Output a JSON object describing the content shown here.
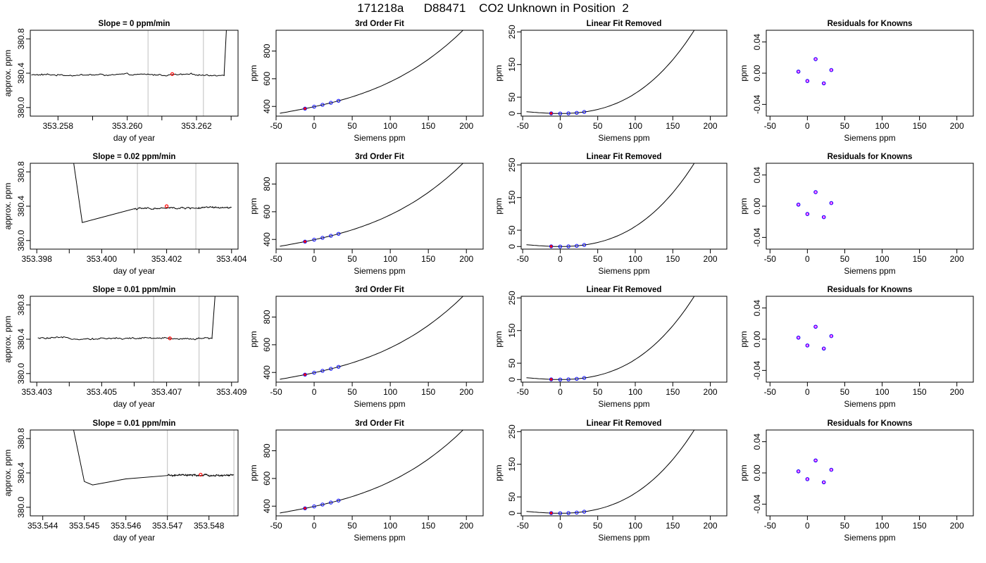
{
  "page": {
    "title": "171218a      D88471    CO2 Unknown in Position  2"
  },
  "chart_data": [
    {
      "type": "line",
      "panel": "timeseries",
      "row": 0,
      "title": "Slope =  0  ppm/min",
      "xlabel": "day of year",
      "ylabel": "approx. ppm",
      "xlim": [
        353.2572,
        353.2632
      ],
      "ylim": [
        379.9,
        380.9
      ],
      "xticks": [
        353.258,
        353.26,
        353.262
      ],
      "xtick_labels": [
        "353.258",
        "353.260",
        "353.262"
      ],
      "minor_xticks": [
        353.259,
        353.261,
        353.263
      ],
      "yticks": [
        380.0,
        380.4,
        380.8
      ],
      "ytick_labels": [
        "380.0",
        "380.4",
        "380.8"
      ],
      "vlines": [
        353.2606,
        353.2622
      ],
      "baseline": 380.38,
      "x_start": 353.2572,
      "x_end": 353.263,
      "features": [
        [
          353.2628,
          380.4,
          353.2629,
          381.2
        ]
      ],
      "marker": [
        353.2613,
        380.39
      ],
      "colors": {
        "line": "#000000",
        "vline": "#bebebe",
        "marker": "#ff0000"
      }
    },
    {
      "type": "line",
      "panel": "fit",
      "row": 0,
      "title": "3rd Order Fit",
      "xlabel": "Siemens ppm",
      "ylabel": "ppm",
      "xlim": [
        -50,
        222
      ],
      "ylim": [
        330,
        950
      ],
      "xticks": [
        -50,
        0,
        50,
        100,
        150,
        200
      ],
      "xtick_labels": [
        "-50",
        "0",
        "50",
        "100",
        "150",
        "200"
      ],
      "yticks": [
        400,
        600,
        800
      ],
      "ytick_labels": [
        "400",
        "600",
        "800"
      ],
      "curve_x": [
        -45,
        216
      ],
      "poly": [
        398,
        1.18,
        0.0038,
        2.35e-05
      ],
      "points_x": [
        -12,
        0,
        11,
        22,
        32
      ],
      "red_point_x": -12,
      "colors": {
        "points": "#0000ff",
        "marker": "#ff0000",
        "line": "#000000"
      }
    },
    {
      "type": "line",
      "panel": "linfit",
      "row": 0,
      "title": "Linear Fit Removed",
      "xlabel": "Siemens ppm",
      "ylabel": "ppm",
      "xlim": [
        -52,
        222
      ],
      "ylim": [
        -8,
        255
      ],
      "xticks": [
        -50,
        0,
        50,
        100,
        150,
        200
      ],
      "xtick_labels": [
        "-50",
        "0",
        "50",
        "100",
        "150",
        "200"
      ],
      "yticks": [
        0,
        50,
        150,
        250
      ],
      "ytick_labels": [
        "0",
        "50",
        "150",
        "250"
      ],
      "curve_x": [
        -45,
        216
      ],
      "poly": [
        0,
        0,
        0.0038,
        2.35e-05
      ],
      "points_x": [
        -12,
        0,
        11,
        22,
        32
      ],
      "red_point_x": -12,
      "colors": {
        "points": "#0000ff",
        "marker": "#ff0000",
        "line": "#000000"
      }
    },
    {
      "type": "scatter",
      "panel": "residuals",
      "row": 0,
      "title": "Residuals for Knowns",
      "xlabel": "Siemens ppm",
      "ylabel": "ppm",
      "xlim": [
        -55,
        222
      ],
      "ylim": [
        -0.055,
        0.055
      ],
      "xticks": [
        -50,
        0,
        50,
        100,
        150,
        200
      ],
      "xtick_labels": [
        "-50",
        "0",
        "50",
        "100",
        "150",
        "200"
      ],
      "yticks": [
        -0.04,
        0.0,
        0.04
      ],
      "ytick_labels": [
        "-0.04",
        "0.00",
        "0.04"
      ],
      "x": [
        -12,
        0,
        11,
        22,
        32
      ],
      "y": [
        0.002,
        -0.01,
        0.018,
        -0.013,
        0.004
      ],
      "colors": {
        "outer": "#0000ff",
        "inner": "#ff00ff"
      }
    },
    {
      "type": "line",
      "panel": "timeseries",
      "row": 1,
      "title": "Slope =  0.02  ppm/min",
      "xlabel": "day of year",
      "ylabel": "approx. ppm",
      "xlim": [
        353.3978,
        353.4042
      ],
      "ylim": [
        379.9,
        380.9
      ],
      "xticks": [
        353.398,
        353.4,
        353.402,
        353.404
      ],
      "xtick_labels": [
        "353.398",
        "353.400",
        "353.402",
        "353.404"
      ],
      "minor_xticks": [
        353.399,
        353.401,
        353.403
      ],
      "yticks": [
        380.0,
        380.4,
        380.8
      ],
      "ytick_labels": [
        "380.0",
        "380.4",
        "380.8"
      ],
      "vlines": [
        353.4011,
        353.4029
      ],
      "baseline": 380.38,
      "x_start": 353.3991,
      "x_end": 353.404,
      "features": [
        [
          353.3991,
          381.0,
          353.3994,
          380.21,
          353.3999,
          380.26,
          353.401,
          380.37
        ]
      ],
      "marker": [
        353.402,
        380.4
      ],
      "colors": {
        "line": "#000000",
        "vline": "#bebebe",
        "marker": "#ff0000"
      }
    },
    {
      "type": "line",
      "panel": "fit",
      "row": 1,
      "title": "3rd Order Fit",
      "xlabel": "Siemens ppm",
      "ylabel": "ppm",
      "xlim": [
        -50,
        222
      ],
      "ylim": [
        330,
        950
      ],
      "xticks": [
        -50,
        0,
        50,
        100,
        150,
        200
      ],
      "xtick_labels": [
        "-50",
        "0",
        "50",
        "100",
        "150",
        "200"
      ],
      "yticks": [
        400,
        600,
        800
      ],
      "ytick_labels": [
        "400",
        "600",
        "800"
      ],
      "curve_x": [
        -45,
        216
      ],
      "poly": [
        398,
        1.18,
        0.0038,
        2.35e-05
      ],
      "points_x": [
        -12,
        0,
        11,
        22,
        32
      ],
      "red_point_x": -12,
      "colors": {
        "points": "#0000ff",
        "marker": "#ff0000",
        "line": "#000000"
      }
    },
    {
      "type": "line",
      "panel": "linfit",
      "row": 1,
      "title": "Linear Fit Removed",
      "xlabel": "Siemens ppm",
      "ylabel": "ppm",
      "xlim": [
        -52,
        222
      ],
      "ylim": [
        -8,
        255
      ],
      "xticks": [
        -50,
        0,
        50,
        100,
        150,
        200
      ],
      "xtick_labels": [
        "-50",
        "0",
        "50",
        "100",
        "150",
        "200"
      ],
      "yticks": [
        0,
        50,
        150,
        250
      ],
      "ytick_labels": [
        "0",
        "50",
        "150",
        "250"
      ],
      "curve_x": [
        -45,
        216
      ],
      "poly": [
        0,
        0,
        0.0038,
        2.35e-05
      ],
      "points_x": [
        -12,
        0,
        11,
        22,
        32
      ],
      "red_point_x": -12,
      "colors": {
        "points": "#0000ff",
        "marker": "#ff0000",
        "line": "#000000"
      }
    },
    {
      "type": "scatter",
      "panel": "residuals",
      "row": 1,
      "title": "Residuals for Knowns",
      "xlabel": "Siemens ppm",
      "ylabel": "ppm",
      "xlim": [
        -55,
        222
      ],
      "ylim": [
        -0.055,
        0.055
      ],
      "xticks": [
        -50,
        0,
        50,
        100,
        150,
        200
      ],
      "xtick_labels": [
        "-50",
        "0",
        "50",
        "100",
        "150",
        "200"
      ],
      "yticks": [
        -0.04,
        0.0,
        0.04
      ],
      "ytick_labels": [
        "-0.04",
        "0.00",
        "0.04"
      ],
      "x": [
        -12,
        0,
        11,
        22,
        32
      ],
      "y": [
        0.002,
        -0.01,
        0.018,
        -0.014,
        0.004
      ],
      "colors": {
        "outer": "#0000ff",
        "inner": "#ff00ff"
      }
    },
    {
      "type": "line",
      "panel": "timeseries",
      "row": 2,
      "title": "Slope =  0.01  ppm/min",
      "xlabel": "day of year",
      "ylabel": "approx. ppm",
      "xlim": [
        353.4028,
        353.4092
      ],
      "ylim": [
        379.9,
        380.9
      ],
      "xticks": [
        353.403,
        353.405,
        353.407,
        353.409
      ],
      "xtick_labels": [
        "353.403",
        "353.405",
        "353.407",
        "353.409"
      ],
      "minor_xticks": [
        353.404,
        353.406,
        353.408
      ],
      "yticks": [
        380.0,
        380.4,
        380.8
      ],
      "ytick_labels": [
        "380.0",
        "380.4",
        "380.8"
      ],
      "vlines": [
        353.4066,
        353.408
      ],
      "baseline": 380.41,
      "x_start": 353.403,
      "x_end": 353.4085,
      "features": [
        [
          353.4084,
          380.43,
          353.40855,
          381.2
        ]
      ],
      "marker": [
        353.4071,
        380.41
      ],
      "colors": {
        "line": "#000000",
        "vline": "#bebebe",
        "marker": "#ff0000"
      }
    },
    {
      "type": "line",
      "panel": "fit",
      "row": 2,
      "title": "3rd Order Fit",
      "xlabel": "Siemens ppm",
      "ylabel": "ppm",
      "xlim": [
        -50,
        222
      ],
      "ylim": [
        330,
        950
      ],
      "xticks": [
        -50,
        0,
        50,
        100,
        150,
        200
      ],
      "xtick_labels": [
        "-50",
        "0",
        "50",
        "100",
        "150",
        "200"
      ],
      "yticks": [
        400,
        600,
        800
      ],
      "ytick_labels": [
        "400",
        "600",
        "800"
      ],
      "curve_x": [
        -45,
        216
      ],
      "poly": [
        398,
        1.18,
        0.0038,
        2.35e-05
      ],
      "points_x": [
        -12,
        0,
        11,
        22,
        32
      ],
      "red_point_x": -12,
      "colors": {
        "points": "#0000ff",
        "marker": "#ff0000",
        "line": "#000000"
      }
    },
    {
      "type": "line",
      "panel": "linfit",
      "row": 2,
      "title": "Linear Fit Removed",
      "xlabel": "Siemens ppm",
      "ylabel": "ppm",
      "xlim": [
        -52,
        222
      ],
      "ylim": [
        -8,
        255
      ],
      "xticks": [
        -50,
        0,
        50,
        100,
        150,
        200
      ],
      "xtick_labels": [
        "-50",
        "0",
        "50",
        "100",
        "150",
        "200"
      ],
      "yticks": [
        0,
        50,
        150,
        250
      ],
      "ytick_labels": [
        "0",
        "50",
        "150",
        "250"
      ],
      "curve_x": [
        -45,
        216
      ],
      "poly": [
        0,
        0,
        0.0038,
        2.35e-05
      ],
      "points_x": [
        -12,
        0,
        11,
        22,
        32
      ],
      "red_point_x": -12,
      "colors": {
        "points": "#0000ff",
        "marker": "#ff0000",
        "line": "#000000"
      }
    },
    {
      "type": "scatter",
      "panel": "residuals",
      "row": 2,
      "title": "Residuals for Knowns",
      "xlabel": "Siemens ppm",
      "ylabel": "ppm",
      "xlim": [
        -55,
        222
      ],
      "ylim": [
        -0.055,
        0.055
      ],
      "xticks": [
        -50,
        0,
        50,
        100,
        150,
        200
      ],
      "xtick_labels": [
        "-50",
        "0",
        "50",
        "100",
        "150",
        "200"
      ],
      "yticks": [
        -0.04,
        0.0,
        0.04
      ],
      "ytick_labels": [
        "-0.04",
        "0.00",
        "0.04"
      ],
      "x": [
        -12,
        0,
        11,
        22,
        32
      ],
      "y": [
        0.002,
        -0.008,
        0.016,
        -0.012,
        0.004
      ],
      "colors": {
        "outer": "#0000ff",
        "inner": "#ff00ff"
      }
    },
    {
      "type": "line",
      "panel": "timeseries",
      "row": 3,
      "title": "Slope =  0.01  ppm/min",
      "xlabel": "day of year",
      "ylabel": "approx. ppm",
      "xlim": [
        353.5437,
        353.5487
      ],
      "ylim": [
        379.9,
        380.9
      ],
      "xticks": [
        353.544,
        353.545,
        353.546,
        353.547,
        353.548
      ],
      "xtick_labels": [
        "353.544",
        "353.545",
        "353.546",
        "353.547",
        "353.548"
      ],
      "minor_xticks": [],
      "yticks": [
        380.0,
        380.4,
        380.8
      ],
      "ytick_labels": [
        "380.0",
        "380.4",
        "380.8"
      ],
      "vlines": [
        353.547,
        353.5486
      ],
      "baseline": 380.37,
      "x_start": 353.5447,
      "x_end": 353.5486,
      "features": [
        [
          353.5447,
          381.0,
          353.545,
          380.3,
          353.5452,
          380.26,
          353.546,
          380.33,
          353.547,
          380.37
        ]
      ],
      "marker": [
        353.5478,
        380.38
      ],
      "colors": {
        "line": "#000000",
        "vline": "#bebebe",
        "marker": "#ff0000"
      }
    },
    {
      "type": "line",
      "panel": "fit",
      "row": 3,
      "title": "3rd Order Fit",
      "xlabel": "Siemens ppm",
      "ylabel": "ppm",
      "xlim": [
        -50,
        222
      ],
      "ylim": [
        330,
        950
      ],
      "xticks": [
        -50,
        0,
        50,
        100,
        150,
        200
      ],
      "xtick_labels": [
        "-50",
        "0",
        "50",
        "100",
        "150",
        "200"
      ],
      "yticks": [
        400,
        600,
        800
      ],
      "ytick_labels": [
        "400",
        "600",
        "800"
      ],
      "curve_x": [
        -45,
        216
      ],
      "poly": [
        398,
        1.18,
        0.0038,
        2.35e-05
      ],
      "points_x": [
        -12,
        0,
        11,
        22,
        32
      ],
      "red_point_x": -12,
      "colors": {
        "points": "#0000ff",
        "marker": "#ff0000",
        "line": "#000000"
      }
    },
    {
      "type": "line",
      "panel": "linfit",
      "row": 3,
      "title": "Linear Fit Removed",
      "xlabel": "Siemens ppm",
      "ylabel": "ppm",
      "xlim": [
        -52,
        222
      ],
      "ylim": [
        -8,
        255
      ],
      "xticks": [
        -50,
        0,
        50,
        100,
        150,
        200
      ],
      "xtick_labels": [
        "-50",
        "0",
        "50",
        "100",
        "150",
        "200"
      ],
      "yticks": [
        0,
        50,
        150,
        250
      ],
      "ytick_labels": [
        "0",
        "50",
        "150",
        "250"
      ],
      "curve_x": [
        -45,
        216
      ],
      "poly": [
        0,
        0,
        0.0038,
        2.35e-05
      ],
      "points_x": [
        -12,
        0,
        11,
        22,
        32
      ],
      "red_point_x": -12,
      "colors": {
        "points": "#0000ff",
        "marker": "#ff0000",
        "line": "#000000"
      }
    },
    {
      "type": "scatter",
      "panel": "residuals",
      "row": 3,
      "title": "Residuals for Knowns",
      "xlabel": "Siemens ppm",
      "ylabel": "ppm",
      "xlim": [
        -55,
        222
      ],
      "ylim": [
        -0.055,
        0.055
      ],
      "xticks": [
        -50,
        0,
        50,
        100,
        150,
        200
      ],
      "xtick_labels": [
        "-50",
        "0",
        "50",
        "100",
        "150",
        "200"
      ],
      "yticks": [
        -0.04,
        0.0,
        0.04
      ],
      "ytick_labels": [
        "-0.04",
        "0.00",
        "0.04"
      ],
      "x": [
        -12,
        0,
        11,
        22,
        32
      ],
      "y": [
        0.002,
        -0.008,
        0.016,
        -0.012,
        0.004
      ],
      "colors": {
        "outer": "#0000ff",
        "inner": "#ff00ff"
      }
    }
  ]
}
